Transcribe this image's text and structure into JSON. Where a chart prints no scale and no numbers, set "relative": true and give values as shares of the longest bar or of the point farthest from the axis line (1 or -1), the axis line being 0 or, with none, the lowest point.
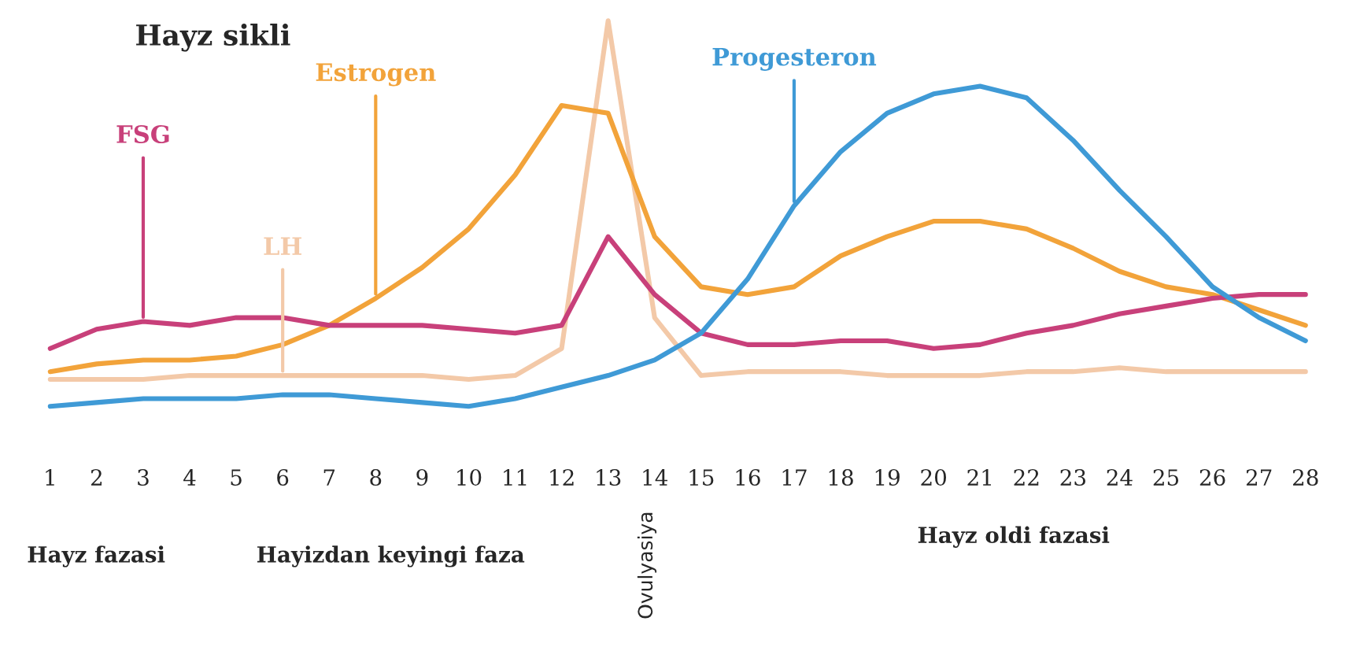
{
  "chart_data": {
    "type": "line",
    "title": "Hayz sikli",
    "relative": true,
    "legend": false,
    "grid": false,
    "marker": "none",
    "line_style": "solid",
    "categories": [
      "1",
      "2",
      "3",
      "4",
      "5",
      "6",
      "7",
      "8",
      "9",
      "10",
      "11",
      "12",
      "13",
      "14",
      "15",
      "16",
      "17",
      "18",
      "19",
      "20",
      "21",
      "22",
      "23",
      "24",
      "25",
      "26",
      "27",
      "28"
    ],
    "series": [
      {
        "name": "LH",
        "color": "#f3c9a8",
        "values": [
          0.07,
          0.07,
          0.07,
          0.08,
          0.08,
          0.08,
          0.08,
          0.08,
          0.08,
          0.07,
          0.08,
          0.15,
          1.0,
          0.23,
          0.08,
          0.09,
          0.09,
          0.09,
          0.08,
          0.08,
          0.08,
          0.09,
          0.09,
          0.1,
          0.09,
          0.09,
          0.09,
          0.09
        ]
      },
      {
        "name": "Estrogen",
        "color": "#f2a33a",
        "values": [
          0.09,
          0.11,
          0.12,
          0.12,
          0.13,
          0.16,
          0.21,
          0.28,
          0.36,
          0.46,
          0.6,
          0.78,
          0.76,
          0.44,
          0.31,
          0.29,
          0.31,
          0.39,
          0.44,
          0.48,
          0.48,
          0.46,
          0.41,
          0.35,
          0.31,
          0.29,
          0.25,
          0.21
        ]
      },
      {
        "name": "FSG",
        "color": "#c8407a",
        "values": [
          0.15,
          0.2,
          0.22,
          0.21,
          0.23,
          0.23,
          0.21,
          0.21,
          0.21,
          0.2,
          0.19,
          0.21,
          0.44,
          0.29,
          0.19,
          0.16,
          0.16,
          0.17,
          0.17,
          0.15,
          0.16,
          0.19,
          0.21,
          0.24,
          0.26,
          0.28,
          0.29,
          0.29
        ]
      },
      {
        "name": "Progesteron",
        "color": "#3f9ad6",
        "values": [
          0,
          0.01,
          0.02,
          0.02,
          0.02,
          0.03,
          0.03,
          0.02,
          0.01,
          0.0,
          0.02,
          0.05,
          0.08,
          0.12,
          0.19,
          0.33,
          0.52,
          0.66,
          0.76,
          0.81,
          0.83,
          0.8,
          0.69,
          0.56,
          0.44,
          0.31,
          0.23,
          0.17
        ]
      }
    ],
    "annotations": [
      "Hayz fazasi",
      "Hayizdan keyingi faza",
      "Ovulyasiya",
      "Hayz oldi fazasi"
    ]
  }
}
